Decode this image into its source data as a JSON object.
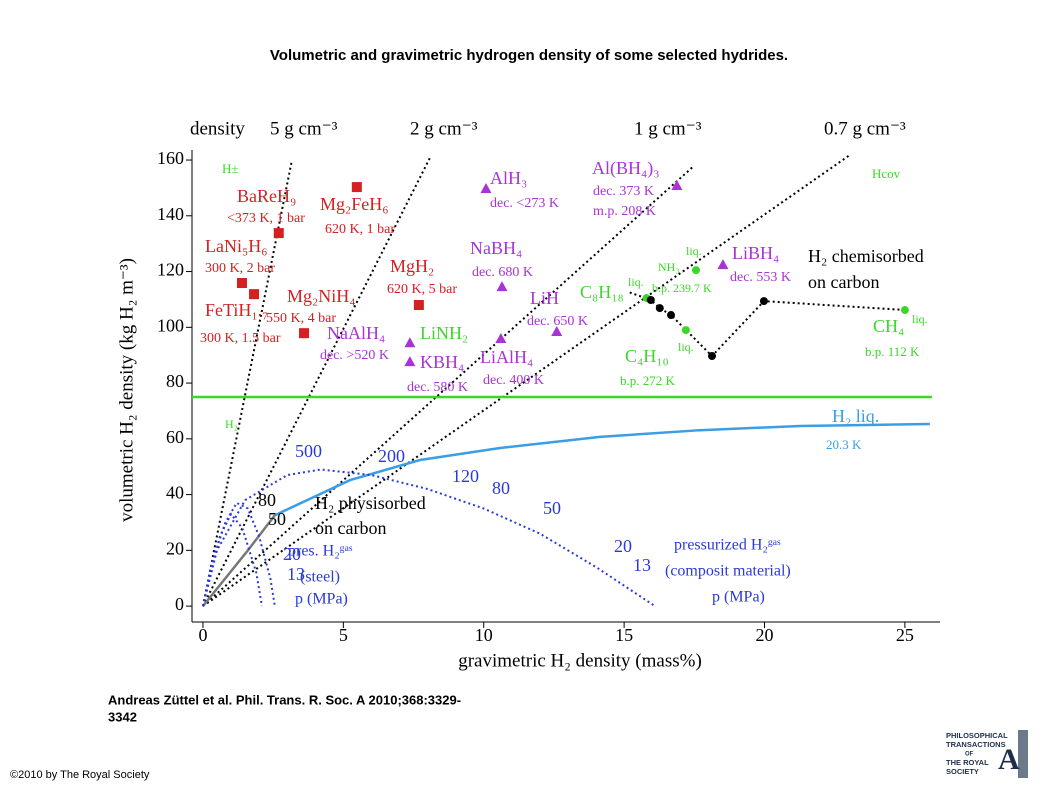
{
  "title": "Volumetric and gravimetric hydrogen density of some selected hydrides.",
  "citation": [
    "Andreas Züttel et al. Phil. Trans. R. Soc. A 2010;368:3329-",
    "3342"
  ],
  "copyright": "©2010 by The Royal Society",
  "logo": {
    "lines": [
      "PHILOSOPHICAL",
      "TRANSACTIONS",
      "OF",
      "THE ROYAL",
      "SOCIETY"
    ],
    "letter": "A"
  },
  "chart_data": {
    "type": "scatter",
    "xlabel": "gravimetric H₂ density (mass%)",
    "ylabel": "volumetric H₂ density (kg H₂ m⁻³)",
    "xlim": [
      -0.39,
      26.25
    ],
    "ylim": [
      -5.7,
      163.6
    ],
    "xticks": [
      0,
      5,
      10,
      15,
      20,
      25
    ],
    "yticks": [
      0,
      20,
      40,
      60,
      80,
      100,
      120,
      140,
      160
    ],
    "density_labels": [
      "density",
      "5 g cm⁻³",
      "2 g cm⁻³",
      "1 g cm⁻³",
      "0.7 g cm⁻³"
    ],
    "series": [
      {
        "color": "#d42020",
        "marker": "square",
        "x": [
          2.7,
          5.48,
          1.39,
          1.82,
          3.6,
          7.69
        ],
        "values": [
          133.8,
          150.3,
          115.9,
          111.9,
          97.9,
          108
        ]
      },
      {
        "color": "#a833d6",
        "marker": "triangle",
        "x": [
          10.08,
          16.88,
          10.65,
          18.52,
          12.6,
          7.37,
          7.37,
          10.61
        ],
        "values": [
          149.6,
          150.7,
          114.4,
          122.3,
          98.3,
          94.3,
          87.5,
          95.8
        ]
      },
      {
        "color": "#3cd62a",
        "marker": "circle",
        "x": [
          17.56,
          25,
          17.2,
          15.8
        ],
        "values": [
          120.5,
          106.2,
          99,
          110.5
        ]
      },
      {
        "color": "#000000",
        "marker": "circle",
        "x": [
          15.95,
          16.27,
          16.67,
          18.13,
          19.98
        ],
        "values": [
          109.8,
          106.9,
          104.4,
          89.7,
          109.4
        ]
      }
    ],
    "lines": [
      {
        "color": "#000000",
        "style": "dotted",
        "x": [
          0,
          3.17
        ],
        "values": [
          0,
          160
        ]
      },
      {
        "color": "#000000",
        "style": "dotted",
        "x": [
          0,
          8.08
        ],
        "values": [
          0,
          160.7
        ]
      },
      {
        "color": "#000000",
        "style": "dotted",
        "x": [
          0,
          17.5
        ],
        "values": [
          0,
          158
        ]
      },
      {
        "color": "#000000",
        "style": "dotted",
        "x": [
          0,
          23.04
        ],
        "values": [
          0,
          161.8
        ]
      },
      {
        "color": "#000000",
        "style": "dotted",
        "x": [
          15.2,
          15.95,
          16.27,
          16.67,
          18.13,
          19.98,
          25
        ],
        "values": [
          112.5,
          109.8,
          106.9,
          104.4,
          89.7,
          109.4,
          106.2
        ]
      },
      {
        "color": "#3cd62a",
        "style": "solid",
        "x": [
          -0.39,
          25.96
        ],
        "values": [
          75,
          75
        ]
      },
      {
        "color": "#3a9ee6",
        "style": "solid",
        "x": [
          2.56,
          5.24,
          7.73,
          10.58,
          14.14,
          17.7,
          21.26,
          25.89
        ],
        "values": [
          32.6,
          45.2,
          52.4,
          56.7,
          60.7,
          63.1,
          64.6,
          65.3
        ]
      },
      {
        "color": "#777777",
        "style": "solid",
        "x": [
          0,
          0.8,
          1.6,
          2.56
        ],
        "values": [
          0,
          10,
          20,
          32.6
        ]
      },
      {
        "color": "#2a3ad6",
        "style": "dotted",
        "x": [
          0,
          0.5,
          1.5,
          3,
          4.2,
          6,
          8,
          10,
          12,
          14,
          16.1
        ],
        "values": [
          0,
          20,
          38,
          47,
          49,
          47,
          42,
          35,
          26,
          14,
          0
        ]
      },
      {
        "color": "#2a3ad6",
        "style": "dotted",
        "x": [
          0,
          0.3,
          0.8,
          1.2,
          1.6,
          2.0,
          2.4,
          2.56
        ],
        "values": [
          0,
          15,
          30,
          37,
          35,
          25,
          10,
          0
        ]
      },
      {
        "color": "#2a3ad6",
        "style": "dotted",
        "x": [
          0,
          0.6,
          1.0,
          1.4,
          1.9,
          2.1
        ],
        "values": [
          0,
          25,
          33,
          28,
          12,
          0
        ]
      }
    ],
    "annotations": [
      {
        "text": "H±",
        "color": "#3cd62a"
      },
      {
        "text": "BaReH₉",
        "color": "#d42020"
      },
      {
        "text": "<373 K, 1 bar",
        "color": "#d42020"
      },
      {
        "text": "Mg₂FeH₆",
        "color": "#d42020"
      },
      {
        "text": "620 K, 1 bar",
        "color": "#d42020"
      },
      {
        "text": "LaNi₅H₆",
        "color": "#d42020"
      },
      {
        "text": "300 K, 2 bar",
        "color": "#d42020"
      },
      {
        "text": "FeTiH₁.₇",
        "color": "#d42020"
      },
      {
        "text": "300 K, 1.5 bar",
        "color": "#d42020"
      },
      {
        "text": "Mg₂NiH₄",
        "color": "#d42020"
      },
      {
        "text": "550 K, 4 bar",
        "color": "#d42020"
      },
      {
        "text": "MgH₂",
        "color": "#d42020"
      },
      {
        "text": "620 K, 5 bar",
        "color": "#d42020"
      },
      {
        "text": "AlH₃",
        "color": "#a833d6"
      },
      {
        "text": "dec. <273 K",
        "color": "#a833d6"
      },
      {
        "text": "Al(BH₄)₃",
        "color": "#a833d6"
      },
      {
        "text": "dec. 373 K",
        "color": "#a833d6"
      },
      {
        "text": "m.p. 208 K",
        "color": "#a833d6"
      },
      {
        "text": "NaBH₄",
        "color": "#a833d6"
      },
      {
        "text": "dec. 680 K",
        "color": "#a833d6"
      },
      {
        "text": "LiBH₄",
        "color": "#a833d6"
      },
      {
        "text": "dec. 553 K",
        "color": "#a833d6"
      },
      {
        "text": "LiH",
        "color": "#a833d6"
      },
      {
        "text": "dec. 650 K",
        "color": "#a833d6"
      },
      {
        "text": "NaAlH₄",
        "color": "#a833d6"
      },
      {
        "text": "dec. >520 K",
        "color": "#a833d6"
      },
      {
        "text": "KBH₄",
        "color": "#a833d6"
      },
      {
        "text": "dec. 580 K",
        "color": "#a833d6"
      },
      {
        "text": "LiAlH₄",
        "color": "#a833d6"
      },
      {
        "text": "dec. 400 K",
        "color": "#a833d6"
      },
      {
        "text": "LiNH₂",
        "color": "#3cd62a"
      },
      {
        "text": "C₈H₁₈",
        "color": "#3cd62a"
      },
      {
        "text": "liq.",
        "color": "#3cd62a"
      },
      {
        "text": "NH₃",
        "color": "#3cd62a"
      },
      {
        "text": "liq.",
        "color": "#3cd62a"
      },
      {
        "text": "b.p. 239.7 K",
        "color": "#3cd62a"
      },
      {
        "text": "C₄H₁₀",
        "color": "#3cd62a"
      },
      {
        "text": "liq.",
        "color": "#3cd62a"
      },
      {
        "text": "b.p. 272 K",
        "color": "#3cd62a"
      },
      {
        "text": "CH₄",
        "color": "#3cd62a"
      },
      {
        "text": "liq.",
        "color": "#3cd62a"
      },
      {
        "text": "b.p. 112 K",
        "color": "#3cd62a"
      },
      {
        "text": "H₂",
        "color": "#3cd62a"
      },
      {
        "text": "Hcov",
        "color": "#3cd62a"
      },
      {
        "text": "H₂ chemisorbed",
        "color": "#000000"
      },
      {
        "text": "on carbon",
        "color": "#000000"
      },
      {
        "text": "H₂ physisorbed",
        "color": "#000000"
      },
      {
        "text": "on carbon",
        "color": "#000000"
      },
      {
        "text": "H₂ liq.",
        "color": "#3a9ee6"
      },
      {
        "text": "20.3 K",
        "color": "#3a9ee6"
      },
      {
        "text": "pres. H₂ᵍᵃˢ",
        "color": "#2a3ad6"
      },
      {
        "text": "(steel)",
        "color": "#2a3ad6"
      },
      {
        "text": "p (MPa)",
        "color": "#2a3ad6"
      },
      {
        "text": "pressurized H₂ᵍᵃˢ",
        "color": "#2a3ad6"
      },
      {
        "text": "(composit material)",
        "color": "#2a3ad6"
      },
      {
        "text": "p (MPa)",
        "color": "#2a3ad6"
      },
      {
        "text": "500",
        "color": "#2a3ad6"
      },
      {
        "text": "200",
        "color": "#2a3ad6"
      },
      {
        "text": "120",
        "color": "#2a3ad6"
      },
      {
        "text": "80",
        "color": "#2a3ad6"
      },
      {
        "text": "50",
        "color": "#2a3ad6"
      },
      {
        "text": "20",
        "color": "#2a3ad6"
      },
      {
        "text": "13",
        "color": "#2a3ad6"
      },
      {
        "text": "80",
        "color": "#000000"
      },
      {
        "text": "50",
        "color": "#000000"
      },
      {
        "text": "20",
        "color": "#2a3ad6"
      },
      {
        "text": "13",
        "color": "#2a3ad6"
      }
    ]
  }
}
